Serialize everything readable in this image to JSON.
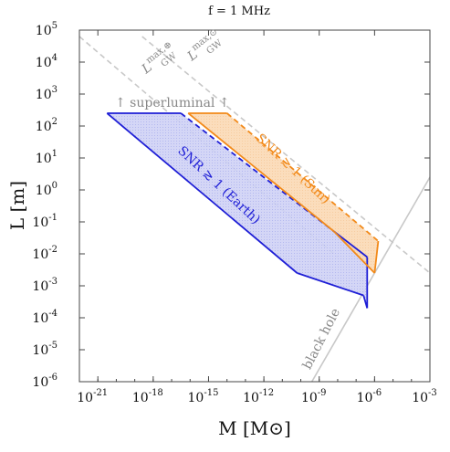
{
  "chart_data": {
    "type": "area",
    "title": "f = 1 MHz",
    "xlabel": "M [M⊙]",
    "ylabel": "L [m]",
    "xscale": "log",
    "yscale": "log",
    "xlim": [
      -22,
      -3
    ],
    "ylim": [
      -6,
      5
    ],
    "x_ticks": [
      "10^-21",
      "10^-18",
      "10^-15",
      "10^-12",
      "10^-9",
      "10^-6",
      "10^-3"
    ],
    "y_ticks": [
      "10^-6",
      "10^-5",
      "10^-4",
      "10^-3",
      "10^-2",
      "10^-1",
      "10^0",
      "10^1",
      "10^2",
      "10^3",
      "10^4",
      "10^5"
    ],
    "grid": false,
    "colors": {
      "earth": "#1f1fd6",
      "earth_fill": "#cfd2f5",
      "sun": "#f28a1a",
      "sun_fill": "#fbd9b5",
      "gray": "#c8c8c8",
      "annot_gray": "#888888"
    },
    "regions": [
      {
        "name": "SNR ≳ 1 (Earth)",
        "color": "#1f1fd6",
        "polygon": [
          [
            -20.5,
            2.4
          ],
          [
            -16.5,
            2.4
          ],
          [
            -8.2,
            -1.3
          ],
          [
            -6.4,
            -2.1
          ],
          [
            -6.4,
            -3.7
          ],
          [
            -6.6,
            -3.3
          ],
          [
            -10.2,
            -2.6
          ]
        ]
      },
      {
        "name": "SNR ≳ 1 (Sun)",
        "color": "#f28a1a",
        "polygon": [
          [
            -16.1,
            2.4
          ],
          [
            -14.0,
            2.4
          ],
          [
            -5.8,
            -1.6
          ],
          [
            -6.0,
            -2.6
          ],
          [
            -8.2,
            -1.3
          ]
        ]
      }
    ],
    "lines": [
      {
        "name": "L_GW^max,⊕",
        "style": "dashed",
        "color": "#c8c8c8",
        "points": [
          [
            -22,
            4.8
          ],
          [
            -8.0,
            -2.1
          ]
        ]
      },
      {
        "name": "L_GW^max,⊙",
        "style": "dashed",
        "color": "#c8c8c8",
        "points": [
          [
            -18.6,
            4.8
          ],
          [
            -3,
            -2.6
          ]
        ]
      },
      {
        "name": "black hole",
        "style": "solid",
        "color": "#c8c8c8",
        "points": [
          [
            -9.4,
            -6
          ],
          [
            -3,
            0.4
          ]
        ]
      }
    ],
    "annotations": {
      "earth_label": "SNR ≳ 1 (Earth)",
      "sun_label": "SNR ≳ 1 (Sun)",
      "superluminal": "↑ superluminal ↑",
      "black_hole": "black hole",
      "lgw_earth": "L",
      "lgw_sun": "L",
      "lgw_sub": "GW",
      "lgw_earth_sup": "max,⊕",
      "lgw_sun_sup": "max,⊙"
    }
  }
}
